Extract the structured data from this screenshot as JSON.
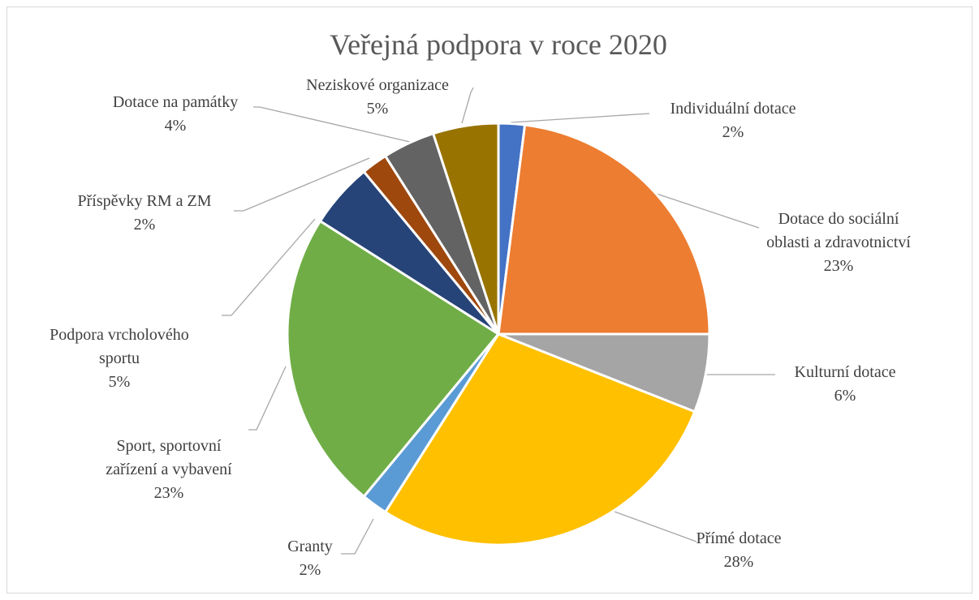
{
  "chart_data": {
    "type": "pie",
    "title": "Veřejná podpora v roce 2020",
    "start_angle_deg": 0,
    "slices": [
      {
        "name": "Individuální dotace",
        "label_lines": [
          "Individuální dotace"
        ],
        "value": 2,
        "pct_label": "2%",
        "color": "#4472C4"
      },
      {
        "name": "Dotace do sociální oblasti a zdravotnictví",
        "label_lines": [
          "Dotace do sociální",
          "oblasti a zdravotnictví"
        ],
        "value": 23,
        "pct_label": "23%",
        "color": "#ED7D31"
      },
      {
        "name": "Kulturní dotace",
        "label_lines": [
          "Kulturní dotace"
        ],
        "value": 6,
        "pct_label": "6%",
        "color": "#A5A5A5"
      },
      {
        "name": "Přímé dotace",
        "label_lines": [
          "Přímé dotace"
        ],
        "value": 28,
        "pct_label": "28%",
        "color": "#FFC000"
      },
      {
        "name": "Granty",
        "label_lines": [
          "Granty"
        ],
        "value": 2,
        "pct_label": "2%",
        "color": "#5B9BD5"
      },
      {
        "name": "Sport, sportovní zařízení a vybavení",
        "label_lines": [
          "Sport, sportovní",
          "zařízení a vybavení"
        ],
        "value": 23,
        "pct_label": "23%",
        "color": "#70AD47"
      },
      {
        "name": "Podpora vrcholového sportu",
        "label_lines": [
          "Podpora vrcholového",
          "sportu"
        ],
        "value": 5,
        "pct_label": "5%",
        "color": "#264478"
      },
      {
        "name": "Příspěvky RM a ZM",
        "label_lines": [
          "Příspěvky RM a ZM"
        ],
        "value": 2,
        "pct_label": "2%",
        "color": "#9E480E"
      },
      {
        "name": "Dotace na památky",
        "label_lines": [
          "Dotace na památky"
        ],
        "value": 4,
        "pct_label": "4%",
        "color": "#636363"
      },
      {
        "name": "Neziskové organizace",
        "label_lines": [
          "Neziskové organizace"
        ],
        "value": 5,
        "pct_label": "5%",
        "color": "#997300"
      }
    ]
  }
}
